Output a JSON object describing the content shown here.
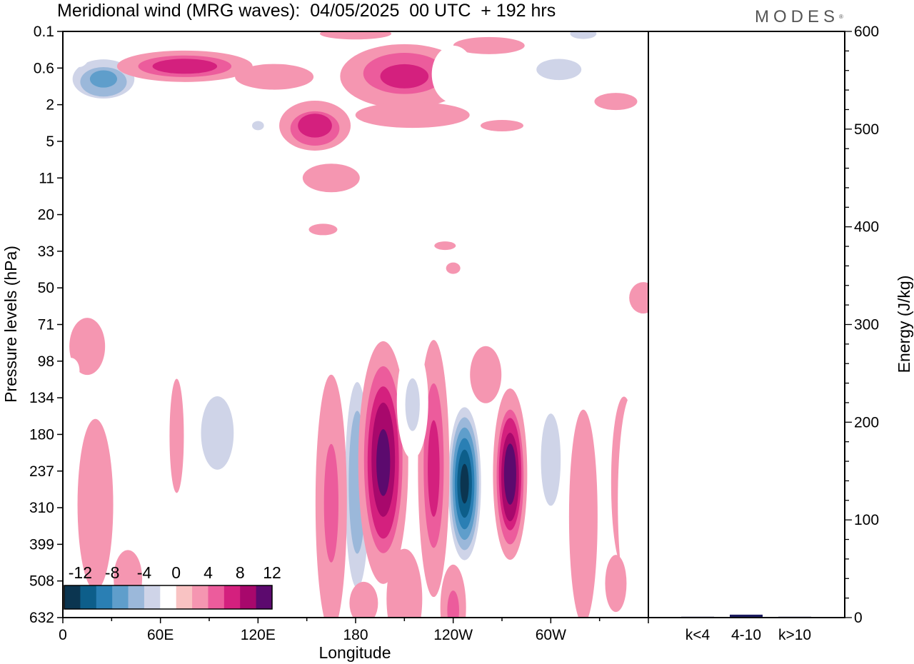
{
  "title": "Meridional wind (MRG waves):  04/05/2025  00 UTC  + 192 hrs",
  "logo": "MODES",
  "chart_data": [
    {
      "type": "heatmap",
      "title": "Meridional wind (MRG waves):  04/05/2025  00 UTC  + 192 hrs",
      "xlabel": "Longitude",
      "ylabel": "Pressure levels (hPa)",
      "x_ticks": [
        "0",
        "60E",
        "120E",
        "180",
        "120W",
        "60W"
      ],
      "x_tick_degrees": [
        0,
        60,
        120,
        180,
        240,
        300
      ],
      "x_range": [
        0,
        360
      ],
      "y_ticks": [
        "0.1",
        "0.6",
        "2",
        "5",
        "11",
        "20",
        "33",
        "50",
        "71",
        "98",
        "134",
        "180",
        "237",
        "310",
        "399",
        "508",
        "632"
      ],
      "colorbar": {
        "labels": [
          "-12",
          "-8",
          "-4",
          "0",
          "4",
          "8",
          "12"
        ],
        "levels": [
          -14,
          -12,
          -10,
          -8,
          -6,
          -4,
          -2,
          2,
          4,
          6,
          8,
          10,
          12,
          14
        ],
        "colors": [
          "#0b3550",
          "#0d5e8a",
          "#2a7fb4",
          "#5f9ecb",
          "#9bb8da",
          "#cfd4e8",
          "#ffffff",
          "#f9c3c3",
          "#f596b1",
          "#ec5c9c",
          "#d4207e",
          "#a8086c",
          "#5c0a6e"
        ]
      },
      "features": [
        {
          "lon": 181,
          "level": 237,
          "value": -7
        },
        {
          "lon": 197,
          "level": 180,
          "value": 10
        },
        {
          "lon": 247,
          "level": 260,
          "value": -14
        },
        {
          "lon": 275,
          "level": 237,
          "value": 11
        },
        {
          "lon": 95,
          "level": 180,
          "value": -5
        },
        {
          "lon": 228,
          "level": 237,
          "value": 6
        },
        {
          "lon": 165,
          "level": 237,
          "value": 4
        },
        {
          "lon": 215,
          "level": 130,
          "value": -4
        },
        {
          "lon": 25,
          "level": 0.9,
          "value": -8
        },
        {
          "lon": 75,
          "level": 0.55,
          "value": 7
        },
        {
          "lon": 155,
          "level": 3.5,
          "value": 7
        },
        {
          "lon": 210,
          "level": 0.75,
          "value": 6
        }
      ]
    },
    {
      "type": "bar",
      "ylabel": "Energy (J/kg)",
      "categories": [
        "k<4",
        "4-10",
        "k>10"
      ],
      "values": [
        0,
        3,
        0
      ],
      "ylim": [
        0,
        600
      ],
      "y_ticks": [
        0,
        100,
        200,
        300,
        400,
        500,
        600
      ]
    }
  ]
}
